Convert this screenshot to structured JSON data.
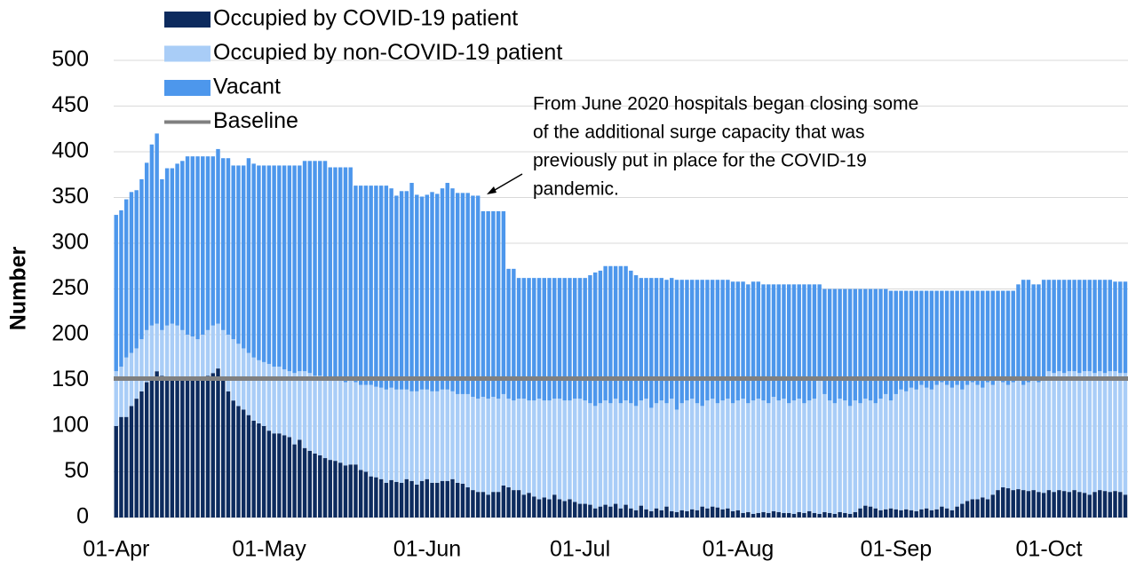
{
  "chart_data": {
    "type": "stacked-bar",
    "y_label": "Number",
    "ylim": [
      0,
      500
    ],
    "yticks": [
      0,
      50,
      100,
      150,
      200,
      250,
      300,
      350,
      400,
      450,
      500
    ],
    "grid": true,
    "categories": [
      "01-Apr",
      null,
      null,
      null,
      null,
      null,
      null,
      null,
      null,
      null,
      null,
      null,
      null,
      null,
      null,
      null,
      null,
      null,
      null,
      null,
      null,
      null,
      null,
      null,
      null,
      null,
      null,
      null,
      null,
      null,
      "01-May",
      null,
      null,
      null,
      null,
      null,
      null,
      null,
      null,
      null,
      null,
      null,
      null,
      null,
      null,
      null,
      null,
      null,
      null,
      null,
      null,
      null,
      null,
      null,
      null,
      null,
      null,
      null,
      null,
      null,
      null,
      "01-Jun",
      null,
      null,
      null,
      null,
      null,
      null,
      null,
      null,
      null,
      null,
      null,
      null,
      null,
      null,
      null,
      null,
      null,
      null,
      null,
      null,
      null,
      null,
      null,
      null,
      null,
      null,
      null,
      null,
      null,
      "01-Jul",
      null,
      null,
      null,
      null,
      null,
      null,
      null,
      null,
      null,
      null,
      null,
      null,
      null,
      null,
      null,
      null,
      null,
      null,
      null,
      null,
      null,
      null,
      null,
      null,
      null,
      null,
      null,
      null,
      null,
      null,
      "01-Aug",
      null,
      null,
      null,
      null,
      null,
      null,
      null,
      null,
      null,
      null,
      null,
      null,
      null,
      null,
      null,
      null,
      null,
      null,
      null,
      null,
      null,
      null,
      null,
      null,
      null,
      null,
      null,
      null,
      null,
      null,
      "01-Sep",
      null,
      null,
      null,
      null,
      null,
      null,
      null,
      null,
      null,
      null,
      null,
      null,
      null,
      null,
      null,
      null,
      null,
      null,
      null,
      null,
      null,
      null,
      null,
      null,
      null,
      null,
      null,
      null,
      null,
      "01-Oct",
      null,
      null,
      null,
      null,
      null,
      null,
      null,
      null,
      null,
      null,
      null,
      null,
      null,
      null,
      null
    ],
    "series": [
      {
        "name": "Occupied by COVID-19 patient",
        "color": "#0d2b5e",
        "values": [
          100,
          110,
          110,
          122,
          130,
          138,
          148,
          153,
          160,
          155,
          152,
          152,
          152,
          150,
          152,
          152,
          153,
          152,
          155,
          158,
          163,
          150,
          138,
          128,
          122,
          118,
          112,
          106,
          103,
          100,
          95,
          92,
          92,
          90,
          88,
          80,
          85,
          76,
          73,
          70,
          68,
          65,
          63,
          62,
          60,
          57,
          58,
          58,
          52,
          50,
          45,
          44,
          42,
          38,
          41,
          39,
          38,
          42,
          40,
          36,
          40,
          42,
          38,
          38,
          40,
          40,
          42,
          38,
          37,
          33,
          30,
          28,
          28,
          25,
          28,
          28,
          35,
          33,
          30,
          30,
          25,
          27,
          23,
          20,
          22,
          20,
          25,
          20,
          18,
          20,
          17,
          15,
          15,
          14,
          10,
          12,
          14,
          12,
          15,
          10,
          14,
          10,
          8,
          13,
          9,
          7,
          10,
          8,
          12,
          7,
          6,
          8,
          7,
          9,
          8,
          12,
          10,
          12,
          11,
          9,
          10,
          7,
          8,
          5,
          6,
          4,
          5,
          6,
          5,
          7,
          6,
          5,
          5,
          4,
          6,
          5,
          7,
          5,
          4,
          6,
          5,
          4,
          6,
          5,
          4,
          6,
          10,
          13,
          12,
          10,
          8,
          9,
          10,
          9,
          8,
          9,
          8,
          7,
          9,
          10,
          8,
          9,
          12,
          10,
          8,
          12,
          15,
          18,
          20,
          20,
          22,
          20,
          25,
          30,
          33,
          32,
          30,
          31,
          30,
          29,
          30,
          28,
          27,
          30,
          28,
          30,
          29,
          28,
          30,
          28,
          27,
          25,
          28,
          30,
          29,
          28,
          29,
          28,
          25
        ]
      },
      {
        "name": "Occupied by non-COVID-19 patient",
        "color": "#a9cdf7",
        "values": [
          60,
          55,
          65,
          58,
          55,
          57,
          57,
          57,
          52,
          50,
          58,
          60,
          58,
          55,
          48,
          46,
          42,
          48,
          50,
          52,
          49,
          55,
          62,
          67,
          68,
          67,
          68,
          69,
          69,
          70,
          73,
          73,
          73,
          72,
          72,
          78,
          75,
          84,
          85,
          85,
          87,
          87,
          87,
          88,
          90,
          91,
          92,
          90,
          93,
          95,
          100,
          99,
          100,
          102,
          101,
          101,
          102,
          98,
          98,
          102,
          100,
          98,
          100,
          100,
          100,
          100,
          96,
          97,
          98,
          102,
          102,
          102,
          104,
          105,
          104,
          102,
          100,
          97,
          98,
          100,
          105,
          101,
          105,
          110,
          106,
          108,
          105,
          110,
          110,
          108,
          113,
          115,
          113,
          111,
          112,
          113,
          114,
          113,
          115,
          115,
          114,
          115,
          114,
          115,
          121,
          113,
          115,
          120,
          113,
          123,
          112,
          117,
          121,
          121,
          117,
          110,
          118,
          118,
          114,
          119,
          120,
          118,
          120,
          125,
          119,
          124,
          125,
          122,
          120,
          125,
          122,
          125,
          120,
          124,
          124,
          120,
          121,
          125,
          146,
          129,
          123,
          121,
          124,
          123,
          118,
          122,
          115,
          117,
          116,
          115,
          122,
          126,
          118,
          126,
          132,
          129,
          134,
          133,
          136,
          132,
          132,
          136,
          136,
          135,
          134,
          133,
          125,
          127,
          128,
          125,
          120,
          128,
          120,
          120,
          115,
          113,
          118,
          119,
          115,
          119,
          120,
          120,
          123,
          130,
          130,
          130,
          129,
          132,
          130,
          130,
          133,
          135,
          130,
          130,
          129,
          132,
          131,
          130,
          133
        ]
      },
      {
        "name": "Vacant",
        "color": "#4d97ec",
        "values": [
          171,
          171,
          173,
          176,
          173,
          175,
          183,
          198,
          208,
          165,
          172,
          170,
          177,
          185,
          195,
          197,
          200,
          195,
          190,
          185,
          191,
          188,
          193,
          190,
          195,
          200,
          213,
          212,
          213,
          215,
          217,
          220,
          220,
          223,
          225,
          227,
          225,
          230,
          232,
          235,
          235,
          238,
          233,
          233,
          233,
          235,
          233,
          215,
          218,
          218,
          218,
          220,
          221,
          223,
          218,
          212,
          217,
          217,
          228,
          215,
          211,
          213,
          218,
          216,
          220,
          226,
          222,
          220,
          220,
          220,
          220,
          222,
          203,
          205,
          203,
          205,
          200,
          142,
          144,
          132,
          132,
          134,
          134,
          132,
          134,
          134,
          132,
          132,
          134,
          134,
          132,
          132,
          134,
          140,
          146,
          145,
          147,
          150,
          145,
          150,
          147,
          145,
          143,
          134,
          132,
          142,
          137,
          134,
          135,
          132,
          142,
          135,
          132,
          130,
          135,
          138,
          132,
          130,
          135,
          132,
          130,
          133,
          130,
          128,
          130,
          130,
          128,
          127,
          130,
          123,
          127,
          125,
          130,
          127,
          125,
          130,
          127,
          125,
          105,
          115,
          122,
          125,
          120,
          122,
          128,
          122,
          125,
          120,
          122,
          125,
          120,
          115,
          120,
          113,
          108,
          110,
          106,
          108,
          103,
          106,
          108,
          103,
          100,
          103,
          106,
          103,
          108,
          103,
          100,
          103,
          106,
          100,
          103,
          98,
          100,
          103,
          100,
          105,
          115,
          112,
          105,
          107,
          110,
          100,
          102,
          100,
          102,
          100,
          100,
          102,
          100,
          100,
          102,
          100,
          102,
          100,
          98,
          100,
          100
        ]
      }
    ],
    "baseline": {
      "name": "Baseline",
      "color": "#808080",
      "value": 152
    },
    "annotation": [
      "From June 2020 hospitals began closing some",
      "of the additional surge capacity that was",
      "previously put in place for the COVID-19",
      "pandemic."
    ]
  }
}
